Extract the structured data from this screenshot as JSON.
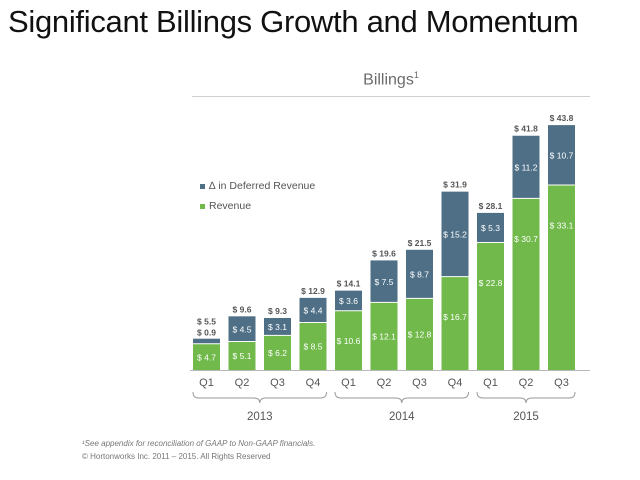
{
  "page": {
    "title": "Significant Billings Growth and Momentum",
    "footnote": "¹See appendix for reconciliation of GAAP to Non-GAAP financials.",
    "copyright": "© Hortonworks Inc. 2011 – 2015. All Rights Reserved"
  },
  "chart_data": {
    "type": "bar",
    "stacked": true,
    "title": "Billings",
    "title_sup": "1",
    "categories": [
      "Q1",
      "Q2",
      "Q3",
      "Q4",
      "Q1",
      "Q2",
      "Q3",
      "Q4",
      "Q1",
      "Q2",
      "Q3"
    ],
    "groups": [
      {
        "label": "2013",
        "start": 0,
        "end": 3
      },
      {
        "label": "2014",
        "start": 4,
        "end": 7
      },
      {
        "label": "2015",
        "start": 8,
        "end": 10
      }
    ],
    "series": [
      {
        "name": "Revenue",
        "color": "#70B94A",
        "values": [
          4.7,
          5.1,
          6.2,
          8.5,
          10.6,
          12.1,
          12.8,
          16.7,
          22.8,
          30.7,
          33.1
        ]
      },
      {
        "name": "∆ in Deferred Revenue",
        "color": "#4E6F86",
        "values": [
          0.9,
          4.5,
          3.1,
          4.4,
          3.6,
          7.5,
          8.7,
          15.2,
          5.3,
          11.2,
          10.7
        ]
      }
    ],
    "totals": [
      5.5,
      9.6,
      9.3,
      12.9,
      14.1,
      19.6,
      21.5,
      31.9,
      28.1,
      41.8,
      43.8
    ],
    "value_prefix": "$ ",
    "ylim": [
      0,
      44
    ],
    "legend_position": "top-left",
    "grid": false
  }
}
